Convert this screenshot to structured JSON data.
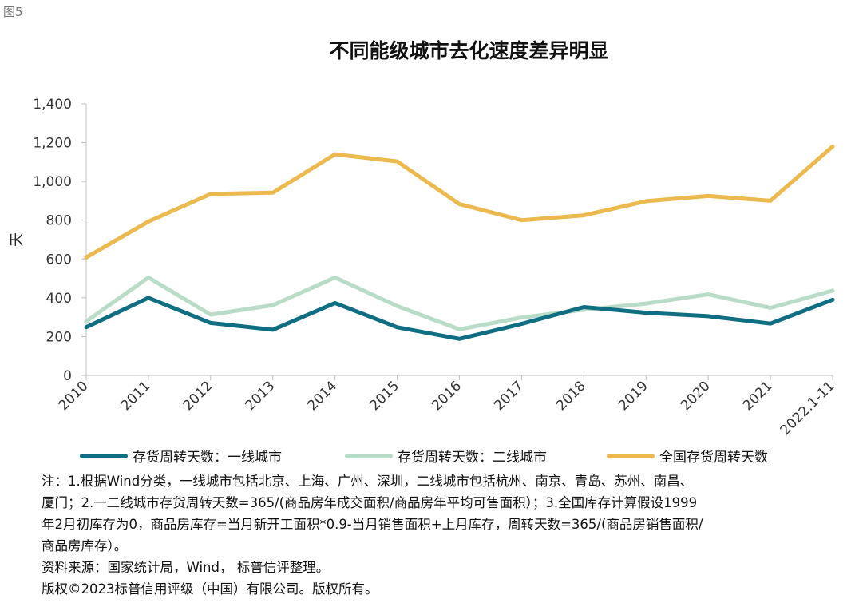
{
  "figure_label": "图5",
  "chart_data": {
    "type": "line",
    "title": "不同能级城市去化速度差异明显",
    "ylabel": "天",
    "xlabel": "",
    "ylim": [
      0,
      1400
    ],
    "yticks": [
      0,
      200,
      400,
      600,
      800,
      1000,
      1200,
      1400
    ],
    "ytick_labels": [
      "0",
      "200",
      "400",
      "600",
      "800",
      "1,000",
      "1,200",
      "1,400"
    ],
    "categories": [
      "2010",
      "2011",
      "2012",
      "2013",
      "2014",
      "2015",
      "2016",
      "2017",
      "2018",
      "2019",
      "2020",
      "2021",
      "2022.1-11"
    ],
    "grid": false,
    "legend_position": "bottom",
    "series": [
      {
        "name": "存货周转天数：一线城市",
        "color": "#0f6e82",
        "values": [
          248,
          400,
          270,
          235,
          373,
          248,
          188,
          265,
          352,
          323,
          305,
          267,
          390
        ]
      },
      {
        "name": "存货周转天数：二线城市",
        "color": "#b9dcc9",
        "values": [
          278,
          505,
          313,
          362,
          505,
          357,
          237,
          298,
          338,
          370,
          418,
          348,
          437
        ]
      },
      {
        "name": "全国存货周转天数",
        "color": "#ecb94f",
        "values": [
          608,
          793,
          935,
          942,
          1140,
          1103,
          883,
          800,
          825,
          898,
          925,
          900,
          1180
        ]
      }
    ]
  },
  "notes": [
    "注：1.根据Wind分类，一线城市包括北京、上海、广州、深圳，二线城市包括杭州、南京、青岛、苏州、南昌、",
    "厦门；2.一二线城市存货周转天数=365/(商品房年成交面积/商品房年平均可售面积）；3.全国库存计算假设1999",
    "年2月初库存为0，商品房库存=当月新开工面积*0.9-当月销售面积+上月库存，周转天数=365/(商品房销售面积/",
    "商品房库存）。",
    "资料来源：国家统计局，Wind， 标普信评整理。",
    "版权©2023标普信用评级（中国）有限公司。版权所有。"
  ]
}
